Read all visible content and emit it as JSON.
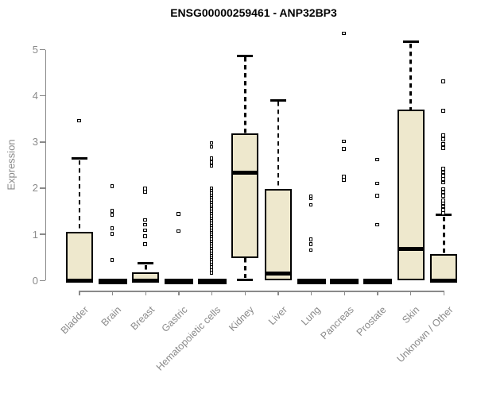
{
  "chart_data": {
    "type": "boxplot",
    "title": "ENSG00000259461 - ANP32BP3",
    "ylabel": "Expression",
    "xlabel": "",
    "ylim": [
      0,
      5
    ],
    "yticks": [
      0,
      1,
      2,
      3,
      4,
      5
    ],
    "grid": false,
    "legend": "none",
    "colors": {
      "box_fill": "#EEE8CD",
      "box_border": "#000000",
      "median": "#000000",
      "axis": "#8a8a8a",
      "tick_label": "#8a8a8a",
      "title": "#000000"
    },
    "categories": [
      "Bladder",
      "Brain",
      "Breast",
      "Gastric",
      "Hematopoietic cells",
      "Kidney",
      "Liver",
      "Lung",
      "Pancreas",
      "Prostate",
      "Skin",
      "Unknown / Other"
    ],
    "boxes": [
      {
        "category": "Bladder",
        "q1": 0,
        "median": 0,
        "q3": 1.06,
        "whisker_high": 2.64,
        "outliers": [
          3.45
        ]
      },
      {
        "category": "Brain",
        "q1": 0,
        "median": 0,
        "q3": 0,
        "whisker_high": 0,
        "outliers": [
          2.03,
          1.5,
          1.41,
          1.12,
          1.0,
          0.43
        ]
      },
      {
        "category": "Breast",
        "q1": 0,
        "median": 0,
        "q3": 0.17,
        "whisker_high": 0.37,
        "outliers": [
          1.98,
          1.91,
          1.3,
          1.2,
          1.08,
          0.95,
          0.78
        ]
      },
      {
        "category": "Gastric",
        "q1": 0,
        "median": 0,
        "q3": 0,
        "whisker_high": 0,
        "outliers": [
          1.43,
          1.06
        ]
      },
      {
        "category": "Hematopoietic cells",
        "q1": 0,
        "median": 0,
        "q3": 0,
        "whisker_high": 0,
        "outliers": [
          2.97,
          2.88,
          2.63,
          2.55,
          2.47,
          1.98,
          1.93,
          1.88,
          1.83,
          1.78,
          1.73,
          1.68,
          1.63,
          1.58,
          1.53,
          1.48,
          1.43,
          1.38,
          1.33,
          1.28,
          1.23,
          1.18,
          1.13,
          1.08,
          1.03,
          0.98,
          0.93,
          0.88,
          0.83,
          0.78,
          0.73,
          0.68,
          0.63,
          0.58,
          0.53,
          0.48,
          0.43,
          0.38,
          0.33,
          0.28,
          0.22,
          0.16
        ]
      },
      {
        "category": "Kidney",
        "q1": 0.49,
        "median": 2.33,
        "q3": 3.18,
        "whisker_high": 4.87,
        "whisker_low": 0.02,
        "outliers": []
      },
      {
        "category": "Liver",
        "q1": 0,
        "median": 0.15,
        "q3": 1.98,
        "whisker_high": 3.9,
        "outliers": []
      },
      {
        "category": "Lung",
        "q1": 0,
        "median": 0,
        "q3": 0,
        "whisker_high": 0,
        "outliers": [
          1.82,
          1.77,
          1.63,
          0.88,
          0.78,
          0.65
        ]
      },
      {
        "category": "Pancreas",
        "q1": 0,
        "median": 0,
        "q3": 0,
        "whisker_high": 0,
        "outliers": [
          5.34,
          3.0,
          2.84,
          2.24,
          2.17
        ]
      },
      {
        "category": "Prostate",
        "q1": 0,
        "median": 0,
        "q3": 0,
        "whisker_high": 0,
        "outliers": [
          2.61,
          2.09,
          1.83,
          1.2
        ]
      },
      {
        "category": "Skin",
        "q1": 0,
        "median": 0.68,
        "q3": 3.7,
        "whisker_high": 5.17,
        "outliers": []
      },
      {
        "category": "Unknown / Other",
        "q1": 0,
        "median": 0,
        "q3": 0.57,
        "whisker_high": 1.42,
        "outliers": [
          4.3,
          3.67,
          3.13,
          3.05,
          2.94,
          2.86,
          2.41,
          2.33,
          2.26,
          2.19,
          2.11,
          1.97,
          1.9,
          1.83,
          1.72,
          1.66,
          1.59,
          1.52,
          1.45
        ]
      }
    ]
  }
}
